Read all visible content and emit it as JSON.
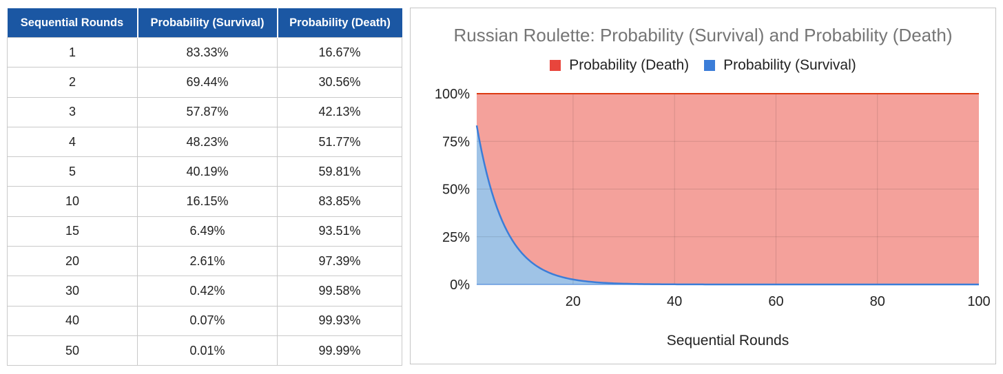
{
  "table": {
    "headers": [
      "Sequential Rounds",
      "Probability (Survival)",
      "Probability (Death)"
    ],
    "rows": [
      [
        "1",
        "83.33%",
        "16.67%"
      ],
      [
        "2",
        "69.44%",
        "30.56%"
      ],
      [
        "3",
        "57.87%",
        "42.13%"
      ],
      [
        "4",
        "48.23%",
        "51.77%"
      ],
      [
        "5",
        "40.19%",
        "59.81%"
      ],
      [
        "10",
        "16.15%",
        "83.85%"
      ],
      [
        "15",
        "6.49%",
        "93.51%"
      ],
      [
        "20",
        "2.61%",
        "97.39%"
      ],
      [
        "30",
        "0.42%",
        "99.58%"
      ],
      [
        "40",
        "0.07%",
        "99.93%"
      ],
      [
        "50",
        "0.01%",
        "99.99%"
      ]
    ],
    "header_color": "#1b57a3"
  },
  "chart_data": {
    "type": "area",
    "stacked": true,
    "title": "Russian Roulette: Probability (Survival) and Probability (Death)",
    "xlabel": "Sequential Rounds",
    "ylabel": "",
    "xlim": [
      1,
      100
    ],
    "ylim": [
      0,
      100
    ],
    "x_ticks": [
      "20",
      "40",
      "60",
      "80",
      "100"
    ],
    "y_ticks": [
      "0%",
      "25%",
      "50%",
      "75%",
      "100%"
    ],
    "grid": true,
    "legend_position": "top",
    "x": [
      1,
      2,
      3,
      4,
      5,
      10,
      15,
      20,
      30,
      40,
      50,
      60,
      70,
      80,
      90,
      100
    ],
    "series": [
      {
        "name": "Probability (Survival)",
        "color": "#3b7dd8",
        "fill": "#9fc3e6",
        "values": [
          83.33,
          69.44,
          57.87,
          48.23,
          40.19,
          16.15,
          6.49,
          2.61,
          0.42,
          0.07,
          0.01,
          0,
          0,
          0,
          0,
          0
        ]
      },
      {
        "name": "Probability (Death)",
        "color": "#dc3912",
        "fill": "#f4a19b",
        "values": [
          16.67,
          30.56,
          42.13,
          51.77,
          59.81,
          83.85,
          93.51,
          97.39,
          99.58,
          99.93,
          99.99,
          100,
          100,
          100,
          100,
          100
        ]
      }
    ],
    "legend_order": [
      "Probability (Death)",
      "Probability (Survival)"
    ]
  }
}
